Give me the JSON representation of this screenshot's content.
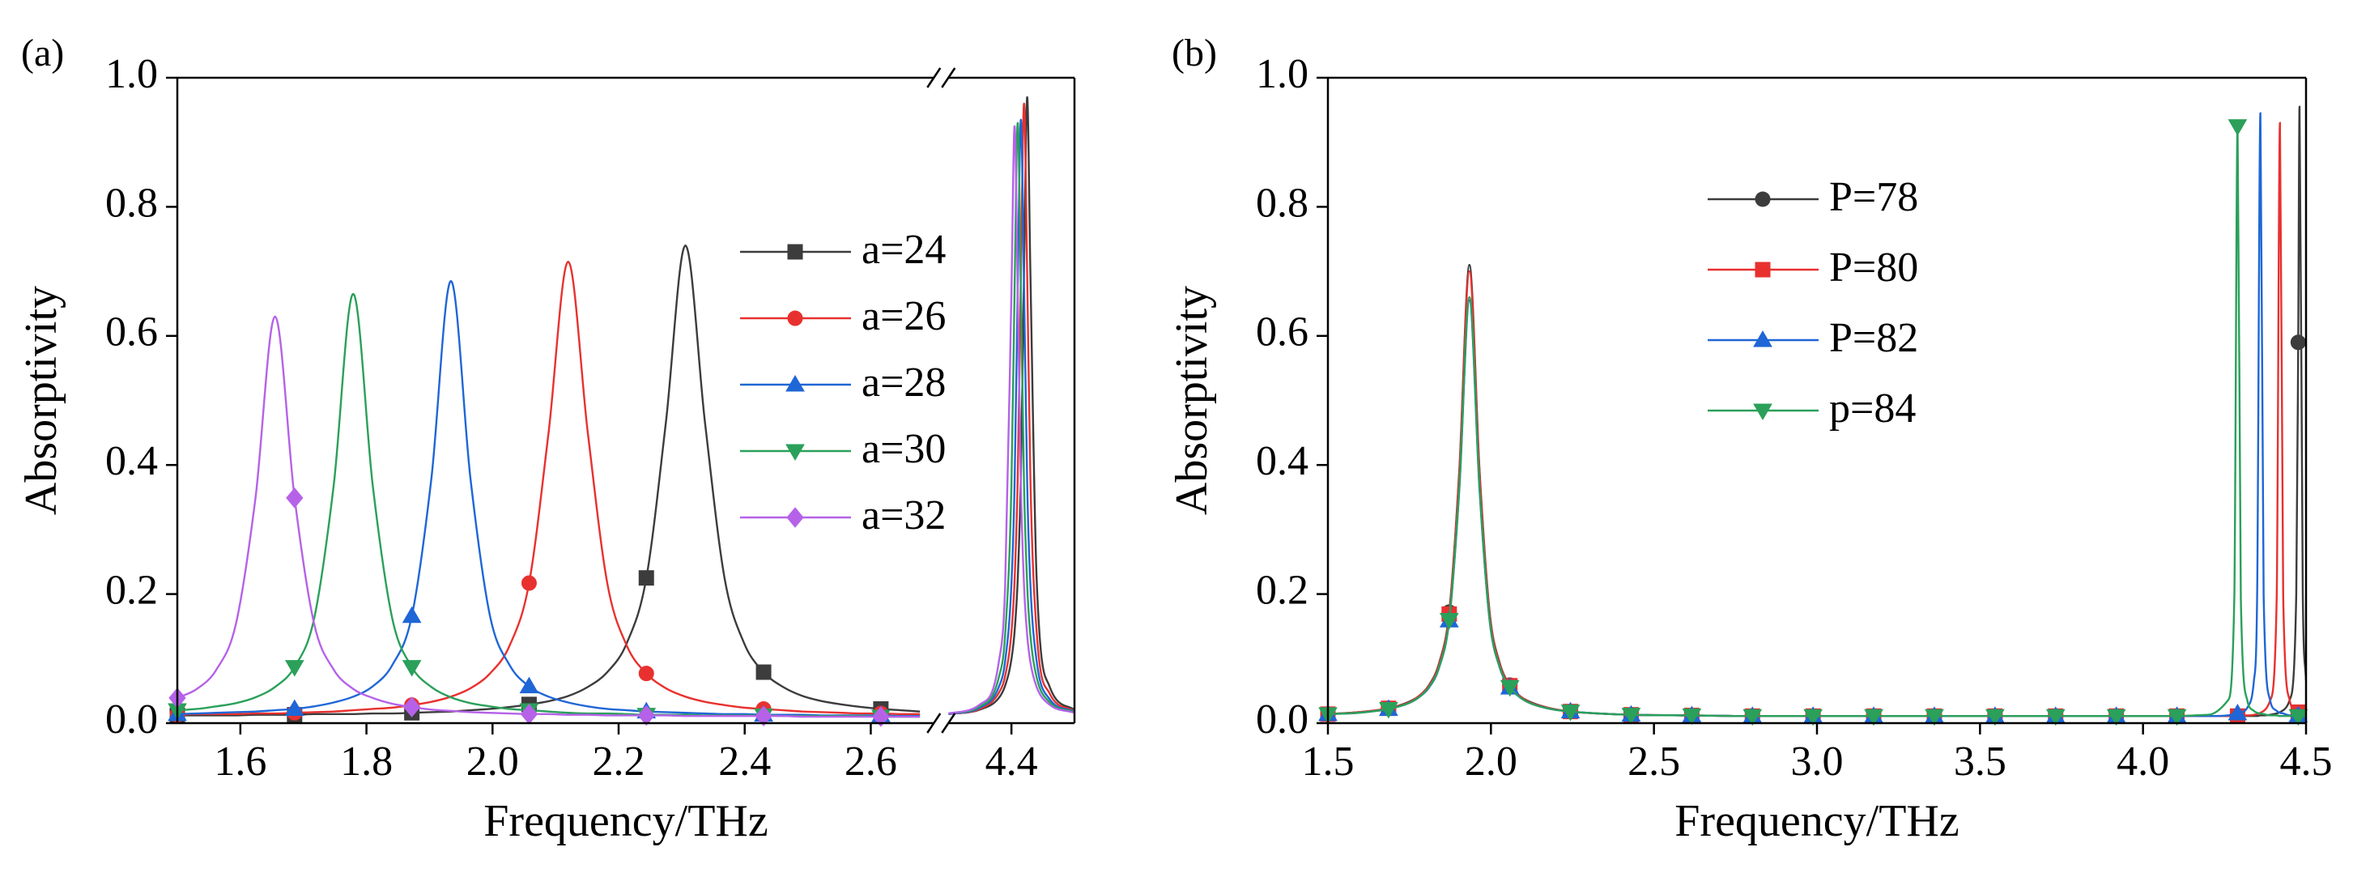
{
  "chart_data": [
    {
      "type": "line",
      "panel_label": "(a)",
      "x_label": "Frequency/THz",
      "y_label": "Absorptivity",
      "xlim": [
        1.5,
        4.5
      ],
      "xbreak": [
        2.7,
        4.3
      ],
      "xticks": [
        1.6,
        1.8,
        {
          "value": 2.0,
          "label": "2.0"
        },
        2.2,
        2.4,
        2.6,
        4.4
      ],
      "ylim": [
        0,
        1
      ],
      "yticks": [
        {
          "value": 0,
          "label": "0.0"
        },
        0.2,
        0.4,
        0.6,
        0.8,
        {
          "value": 1,
          "label": "1.0"
        }
      ],
      "legend_loc": "upper right",
      "marker_spacing": 0.186,
      "x": [
        1.5,
        1.531,
        1.562,
        1.593,
        1.624,
        1.655,
        1.686,
        1.717,
        1.748,
        1.779,
        1.81,
        1.841,
        1.872,
        1.903,
        1.934,
        1.965,
        1.996,
        2.027,
        2.058,
        2.089,
        2.12,
        2.151,
        2.182,
        2.213,
        2.244,
        2.275,
        2.306,
        2.337,
        2.368,
        2.399,
        2.43,
        2.461,
        2.492,
        2.523,
        2.554,
        2.585,
        2.616,
        2.647,
        2.678,
        4.3,
        4.35,
        4.38,
        4.39,
        4.4,
        4.405,
        4.41,
        4.415,
        4.42,
        4.425,
        4.43,
        4.44,
        4.46,
        4.5
      ],
      "series": [
        {
          "name": "a=24",
          "color": "#3c3c3c",
          "marker": "square",
          "values": [
            0.012,
            0.012,
            0.012,
            0.012,
            0.013,
            0.013,
            0.013,
            0.014,
            0.014,
            0.014,
            0.015,
            0.015,
            0.016,
            0.017,
            0.018,
            0.02,
            0.022,
            0.025,
            0.029,
            0.034,
            0.042,
            0.056,
            0.079,
            0.124,
            0.225,
            0.466,
            0.74,
            0.466,
            0.225,
            0.124,
            0.079,
            0.056,
            0.042,
            0.034,
            0.029,
            0.025,
            0.022,
            0.02,
            0.018,
            0.014,
            0.021,
            0.039,
            0.058,
            0.099,
            0.142,
            0.223,
            0.385,
            0.701,
            0.97,
            0.701,
            0.223,
            0.058,
            0.021
          ]
        },
        {
          "name": "a=26",
          "color": "#e8312f",
          "marker": "circle",
          "values": [
            0.013,
            0.014,
            0.014,
            0.014,
            0.015,
            0.015,
            0.016,
            0.017,
            0.018,
            0.02,
            0.022,
            0.024,
            0.028,
            0.033,
            0.041,
            0.054,
            0.077,
            0.12,
            0.217,
            0.451,
            0.715,
            0.451,
            0.217,
            0.12,
            0.077,
            0.054,
            0.041,
            0.033,
            0.028,
            0.024,
            0.022,
            0.02,
            0.018,
            0.017,
            0.016,
            0.015,
            0.015,
            0.014,
            0.014,
            0.014,
            0.022,
            0.047,
            0.073,
            0.141,
            0.221,
            0.381,
            0.693,
            0.96,
            0.693,
            0.381,
            0.141,
            0.047,
            0.019
          ]
        },
        {
          "name": "a=28",
          "color": "#1f66d6",
          "marker": "triangle",
          "values": [
            0.014,
            0.015,
            0.016,
            0.017,
            0.018,
            0.02,
            0.022,
            0.026,
            0.032,
            0.041,
            0.057,
            0.09,
            0.166,
            0.379,
            0.685,
            0.379,
            0.166,
            0.09,
            0.057,
            0.041,
            0.032,
            0.026,
            0.022,
            0.02,
            0.018,
            0.017,
            0.016,
            0.015,
            0.014,
            0.014,
            0.013,
            0.013,
            0.013,
            0.012,
            0.012,
            0.012,
            0.012,
            0.011,
            0.011,
            0.014,
            0.024,
            0.056,
            0.096,
            0.216,
            0.371,
            0.675,
            0.935,
            0.675,
            0.371,
            0.216,
            0.096,
            0.038,
            0.018
          ]
        },
        {
          "name": "a=30",
          "color": "#2aa05a",
          "marker": "triangle-down",
          "values": [
            0.02,
            0.022,
            0.026,
            0.031,
            0.04,
            0.056,
            0.087,
            0.162,
            0.368,
            0.665,
            0.368,
            0.162,
            0.087,
            0.056,
            0.04,
            0.031,
            0.026,
            0.022,
            0.02,
            0.018,
            0.016,
            0.015,
            0.015,
            0.014,
            0.013,
            0.013,
            0.013,
            0.012,
            0.012,
            0.012,
            0.012,
            0.011,
            0.011,
            0.011,
            0.011,
            0.011,
            0.01,
            0.01,
            0.01,
            0.015,
            0.026,
            0.071,
            0.137,
            0.369,
            0.672,
            0.93,
            0.672,
            0.369,
            0.214,
            0.137,
            0.071,
            0.033,
            0.017
          ]
        },
        {
          "name": "a=32",
          "color": "#b562e8",
          "marker": "diamond",
          "values": [
            0.039,
            0.053,
            0.083,
            0.154,
            0.349,
            0.63,
            0.349,
            0.154,
            0.083,
            0.053,
            0.039,
            0.03,
            0.025,
            0.021,
            0.019,
            0.017,
            0.016,
            0.015,
            0.014,
            0.014,
            0.013,
            0.013,
            0.012,
            0.012,
            0.012,
            0.012,
            0.011,
            0.011,
            0.011,
            0.011,
            0.011,
            0.011,
            0.01,
            0.01,
            0.01,
            0.01,
            0.01,
            0.01,
            0.01,
            0.015,
            0.029,
            0.095,
            0.213,
            0.668,
            0.925,
            0.668,
            0.367,
            0.213,
            0.136,
            0.095,
            0.056,
            0.029,
            0.016
          ]
        }
      ]
    },
    {
      "type": "line",
      "panel_label": "(b)",
      "x_label": "Frequency/THz",
      "y_label": "Absorptivity",
      "xlim": [
        1.5,
        4.5
      ],
      "xticks": [
        1.5,
        {
          "value": 2.0,
          "label": "2.0"
        },
        2.5,
        {
          "value": 3.0,
          "label": "3.0"
        },
        3.5,
        {
          "value": 4.0,
          "label": "4.0"
        },
        4.5
      ],
      "ylim": [
        0,
        1
      ],
      "yticks": [
        {
          "value": 0,
          "label": "0.0"
        },
        0.2,
        0.4,
        0.6,
        0.8,
        {
          "value": 1,
          "label": "1.0"
        }
      ],
      "legend_loc": "upper center",
      "marker_spacing": 0.186,
      "x": [
        1.5,
        1.593,
        1.686,
        1.748,
        1.779,
        1.81,
        1.841,
        1.872,
        1.903,
        1.934,
        1.965,
        1.996,
        2.027,
        2.058,
        2.089,
        2.12,
        2.182,
        2.244,
        2.43,
        2.616,
        2.802,
        2.988,
        3.174,
        3.36,
        3.546,
        3.732,
        3.918,
        4.104,
        4.2,
        4.26,
        4.28,
        4.29,
        4.3,
        4.32,
        4.34,
        4.35,
        4.36,
        4.37,
        4.39,
        4.41,
        4.42,
        4.43,
        4.45,
        4.47,
        4.476,
        4.48,
        4.49,
        4.5
      ],
      "series": [
        {
          "name": "P=78",
          "color": "#3c3c3c",
          "marker": "circle",
          "values": [
            0.014,
            0.017,
            0.023,
            0.033,
            0.042,
            0.059,
            0.093,
            0.172,
            0.392,
            0.71,
            0.392,
            0.172,
            0.093,
            0.059,
            0.042,
            0.033,
            0.023,
            0.018,
            0.013,
            0.012,
            0.011,
            0.011,
            0.011,
            0.011,
            0.011,
            0.011,
            0.011,
            0.011,
            0.011,
            0.011,
            0.011,
            0.011,
            0.011,
            0.011,
            0.011,
            0.011,
            0.012,
            0.012,
            0.013,
            0.015,
            0.017,
            0.02,
            0.036,
            0.199,
            0.59,
            0.955,
            0.199,
            0.066
          ]
        },
        {
          "name": "P=80",
          "color": "#e8312f",
          "marker": "square",
          "values": [
            0.014,
            0.017,
            0.023,
            0.032,
            0.042,
            0.058,
            0.091,
            0.169,
            0.387,
            0.7,
            0.387,
            0.169,
            0.091,
            0.058,
            0.042,
            0.032,
            0.023,
            0.018,
            0.013,
            0.012,
            0.011,
            0.011,
            0.011,
            0.011,
            0.011,
            0.011,
            0.011,
            0.011,
            0.011,
            0.011,
            0.011,
            0.011,
            0.012,
            0.012,
            0.013,
            0.014,
            0.016,
            0.019,
            0.035,
            0.194,
            0.93,
            0.194,
            0.035,
            0.019,
            0.017,
            0.016,
            0.014,
            0.013
          ]
        },
        {
          "name": "P=82",
          "color": "#1f66d6",
          "marker": "triangle",
          "values": [
            0.014,
            0.016,
            0.022,
            0.031,
            0.04,
            0.055,
            0.086,
            0.159,
            0.362,
            0.655,
            0.362,
            0.159,
            0.086,
            0.055,
            0.04,
            0.031,
            0.022,
            0.018,
            0.013,
            0.012,
            0.011,
            0.011,
            0.011,
            0.011,
            0.011,
            0.011,
            0.011,
            0.011,
            0.011,
            0.012,
            0.014,
            0.015,
            0.016,
            0.024,
            0.065,
            0.197,
            0.945,
            0.197,
            0.035,
            0.019,
            0.016,
            0.015,
            0.012,
            0.012,
            0.012,
            0.011,
            0.011,
            0.011
          ]
        },
        {
          "name": "p=84",
          "color": "#2aa05a",
          "marker": "triangle-down",
          "values": [
            0.014,
            0.016,
            0.022,
            0.031,
            0.04,
            0.056,
            0.087,
            0.16,
            0.365,
            0.66,
            0.365,
            0.16,
            0.087,
            0.056,
            0.04,
            0.031,
            0.022,
            0.018,
            0.013,
            0.012,
            0.011,
            0.011,
            0.011,
            0.011,
            0.011,
            0.011,
            0.011,
            0.011,
            0.013,
            0.035,
            0.193,
            0.925,
            0.193,
            0.035,
            0.019,
            0.016,
            0.015,
            0.014,
            0.012,
            0.012,
            0.011,
            0.011,
            0.011,
            0.011,
            0.011,
            0.011,
            0.011,
            0.011
          ]
        }
      ]
    }
  ]
}
